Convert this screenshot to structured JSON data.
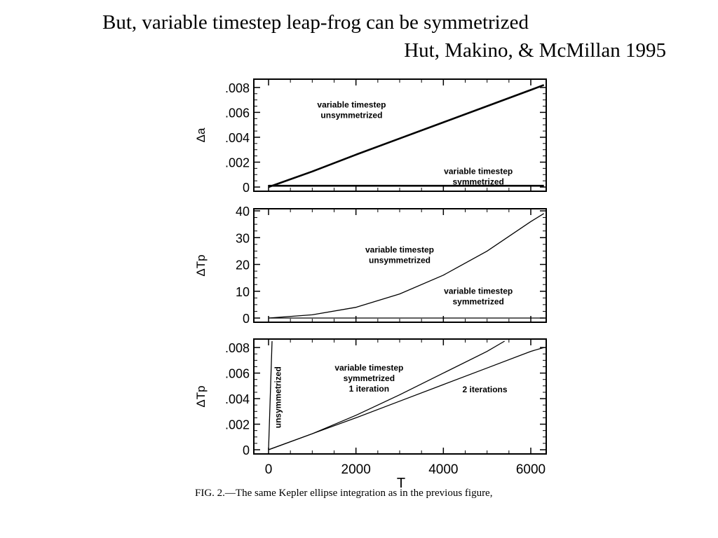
{
  "slide": {
    "title": "But, variable timestep leap-frog can be symmetrized",
    "subtitle": "Hut, Makino, & McMillan 1995"
  },
  "caption": "FIG. 2.—The same Kepler ellipse integration as in the previous figure,",
  "chart_data": [
    {
      "type": "line",
      "ylabel": "Δa",
      "xlim": [
        0,
        6400
      ],
      "ylim": [
        0,
        0.0085
      ],
      "yticks": [
        0,
        0.002,
        0.004,
        0.006,
        0.008
      ],
      "ytick_labels": [
        "0",
        ".002",
        ".004",
        ".006",
        ".008"
      ],
      "xticks": [
        0,
        2000,
        4000,
        6000
      ],
      "series": [
        {
          "name": "variable timestep unsymmetrized",
          "x": [
            0,
            1000,
            2000,
            3000,
            4000,
            5000,
            6000,
            6300
          ],
          "y": [
            0,
            0.00125,
            0.0026,
            0.0039,
            0.0052,
            0.0065,
            0.0078,
            0.0082
          ]
        },
        {
          "name": "variable timestep symmetrized",
          "x": [
            0,
            1000,
            2000,
            3000,
            4000,
            5000,
            6000,
            6300
          ],
          "y": [
            0.0001,
            0.0001,
            0.0001,
            0.0001,
            0.0001,
            0.0001,
            0.0001,
            0.0001
          ]
        }
      ],
      "annotations": [
        {
          "text": [
            "variable timestep",
            "unsymmetrized"
          ],
          "x": 1900,
          "y": 0.0064
        },
        {
          "text": [
            "variable timestep",
            "symmetrized"
          ],
          "x": 4800,
          "y": 0.00105
        }
      ]
    },
    {
      "type": "line",
      "ylabel": "ΔTp",
      "xlim": [
        0,
        6400
      ],
      "ylim": [
        0,
        40
      ],
      "yticks": [
        0,
        10,
        20,
        30,
        40
      ],
      "ytick_labels": [
        "0",
        "10",
        "20",
        "30",
        "40"
      ],
      "xticks": [
        0,
        2000,
        4000,
        6000
      ],
      "series": [
        {
          "name": "variable timestep unsymmetrized",
          "x": [
            0,
            1000,
            2000,
            3000,
            4000,
            5000,
            6000,
            6300
          ],
          "y": [
            0,
            1.2,
            4,
            9,
            16,
            25,
            36,
            39
          ]
        },
        {
          "name": "variable timestep symmetrized",
          "x": [
            0,
            6300
          ],
          "y": [
            0,
            0
          ]
        }
      ],
      "annotations": [
        {
          "text": [
            "variable timestep",
            "unsymmetrized"
          ],
          "x": 3000,
          "y": 24.5
        },
        {
          "text": [
            "variable timestep",
            "symmetrized"
          ],
          "x": 4800,
          "y": 9
        }
      ]
    },
    {
      "type": "line",
      "ylabel": "ΔTp",
      "xlabel": "T",
      "xlim": [
        0,
        6400
      ],
      "ylim": [
        0,
        0.0085
      ],
      "yticks": [
        0,
        0.002,
        0.004,
        0.006,
        0.008
      ],
      "ytick_labels": [
        "0",
        ".002",
        ".004",
        ".006",
        ".008"
      ],
      "xticks": [
        0,
        2000,
        4000,
        6000
      ],
      "xtick_labels": [
        "0",
        "2000",
        "4000",
        "6000"
      ],
      "series": [
        {
          "name": "unsymmetrized",
          "x": [
            0,
            80
          ],
          "y": [
            0,
            0.0085
          ]
        },
        {
          "name": "1 iteration",
          "x": [
            0,
            1000,
            2000,
            3000,
            4000,
            5000,
            5400
          ],
          "y": [
            0,
            0.00125,
            0.0027,
            0.0043,
            0.006,
            0.0077,
            0.0085
          ]
        },
        {
          "name": "2 iterations",
          "x": [
            0,
            1000,
            2000,
            3000,
            4000,
            5000,
            6000,
            6300
          ],
          "y": [
            0,
            0.00125,
            0.0025,
            0.0038,
            0.0051,
            0.0064,
            0.0077,
            0.008
          ]
        }
      ],
      "annotations": [
        {
          "text": [
            "variable timestep",
            "symmetrized",
            "1 iteration"
          ],
          "x": 2300,
          "y": 0.0062
        },
        {
          "text": [
            "2 iterations"
          ],
          "x": 4950,
          "y": 0.0045
        },
        {
          "text": [
            "unsymmetrized"
          ],
          "x": 280,
          "y": 0.0041,
          "rotate": -90
        }
      ]
    }
  ]
}
